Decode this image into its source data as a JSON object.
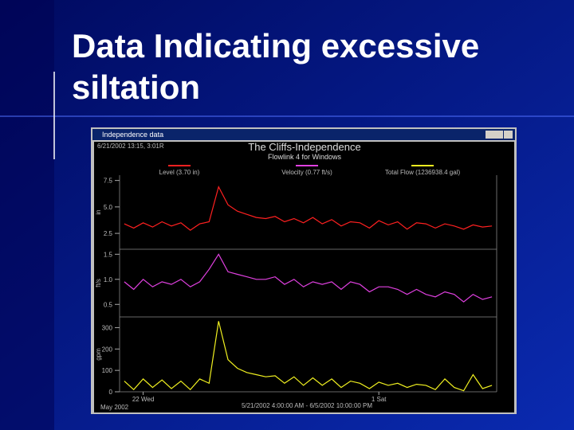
{
  "slide": {
    "title_lines": [
      "Data Indicating excessive",
      "siltation"
    ]
  },
  "window": {
    "title": "Independence data",
    "timestamp": "6/21/2002 13:15, 3:01R",
    "chart_title": "The Cliffs-Independence",
    "chart_subtitle": "Flowlink 4 for Windows",
    "date_range": "5/21/2002 4:00:00 AM - 6/5/2002 10:00:00 PM",
    "xlabel": "May 2002"
  },
  "chart_data": [
    {
      "type": "line",
      "legend": "Level (3.70 in)",
      "ylabel": "in",
      "color": "#ff2020",
      "ylim": [
        1.0,
        8.0
      ],
      "yticks": [
        2.5,
        {
          "value": 5,
          "label": "5.0"
        },
        7.5
      ],
      "values": [
        3.4,
        3.0,
        3.5,
        3.1,
        3.6,
        3.2,
        3.5,
        2.8,
        3.4,
        3.6,
        6.9,
        5.2,
        4.6,
        4.3,
        4.0,
        3.9,
        4.1,
        3.6,
        3.9,
        3.5,
        4.0,
        3.4,
        3.8,
        3.2,
        3.6,
        3.5,
        3.0,
        3.7,
        3.3,
        3.6,
        2.9,
        3.5,
        3.4,
        3.0,
        3.4,
        3.2,
        2.9,
        3.3,
        3.1,
        3.2
      ]
    },
    {
      "type": "line",
      "legend": "Velocity (0.77 ft/s)",
      "ylabel": "ft/s",
      "color": "#e040e0",
      "ylim": [
        0.25,
        1.6
      ],
      "yticks": [
        0.5,
        {
          "value": 1,
          "label": "1.0"
        },
        1.5
      ],
      "values": [
        0.95,
        0.8,
        1.0,
        0.85,
        0.95,
        0.9,
        1.0,
        0.85,
        0.95,
        1.2,
        1.5,
        1.15,
        1.1,
        1.05,
        1.0,
        1.0,
        1.05,
        0.9,
        1.0,
        0.85,
        0.95,
        0.9,
        0.95,
        0.8,
        0.95,
        0.9,
        0.75,
        0.85,
        0.85,
        0.8,
        0.7,
        0.8,
        0.7,
        0.65,
        0.75,
        0.7,
        0.55,
        0.7,
        0.6,
        0.65
      ]
    },
    {
      "type": "line",
      "legend": "Total Flow (1236938.4 gal)",
      "ylabel": "gpm",
      "color": "#f0f020",
      "ylim": [
        0,
        350
      ],
      "yticks": [
        0,
        100,
        200,
        300
      ],
      "categories": [
        null,
        null,
        "22 Wed",
        null,
        null,
        null,
        null,
        null,
        null,
        null,
        null,
        null,
        null,
        null,
        null,
        null,
        null,
        null,
        null,
        null,
        null,
        null,
        null,
        null,
        null,
        null,
        null,
        "1 Sat",
        null,
        null,
        null,
        null,
        null,
        null,
        null,
        null,
        null,
        null,
        null,
        null
      ],
      "values": [
        50,
        10,
        60,
        20,
        55,
        15,
        50,
        10,
        60,
        40,
        330,
        150,
        110,
        90,
        80,
        70,
        75,
        40,
        70,
        30,
        65,
        30,
        60,
        20,
        50,
        40,
        15,
        45,
        30,
        40,
        20,
        35,
        30,
        10,
        60,
        20,
        5,
        80,
        15,
        30
      ]
    }
  ]
}
